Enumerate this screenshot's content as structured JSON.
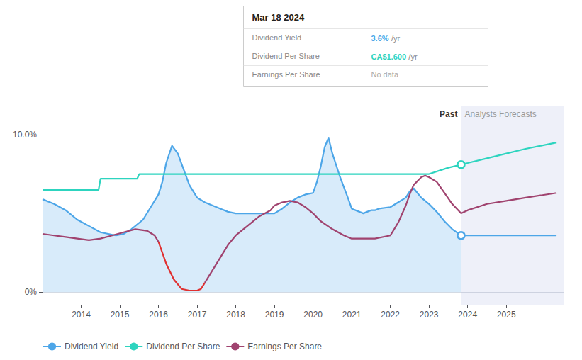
{
  "chart_data": {
    "type": "line",
    "xlim": [
      2013.0,
      2026.5
    ],
    "xticks": [
      2014,
      2015,
      2016,
      2017,
      2018,
      2019,
      2020,
      2021,
      2022,
      2023,
      2024,
      2025
    ],
    "ylim": [
      -0.008,
      0.118
    ],
    "yticks": [
      {
        "value": 0.0,
        "label": "0%"
      },
      {
        "value": 0.1,
        "label": "10.0%"
      }
    ],
    "grid": true,
    "legend": "lower left",
    "forecast_divider_x": 2023.83,
    "past_label": "Past",
    "forecast_label": "Analysts Forecasts",
    "tooltip": {
      "title": "Mar 18 2024",
      "rows": [
        {
          "label": "Dividend Yield",
          "value": "3.6%",
          "suffix": "/yr"
        },
        {
          "label": "Dividend Per Share",
          "value": "CA$1.600",
          "suffix": "/yr"
        },
        {
          "label": "Earnings Per Share",
          "value": "No data"
        }
      ]
    },
    "series": [
      {
        "name": "Dividend Yield",
        "type": "area",
        "color": "#4da6e8",
        "x": [
          2013.0,
          2013.3,
          2013.6,
          2013.9,
          2014.2,
          2014.5,
          2014.7,
          2014.9,
          2015.1,
          2015.3,
          2015.6,
          2015.8,
          2016.0,
          2016.1,
          2016.2,
          2016.35,
          2016.5,
          2016.65,
          2016.8,
          2017.0,
          2017.2,
          2017.4,
          2017.6,
          2017.8,
          2018.0,
          2018.2,
          2018.5,
          2018.7,
          2019.0,
          2019.2,
          2019.4,
          2019.6,
          2019.8,
          2020.0,
          2020.1,
          2020.2,
          2020.3,
          2020.4,
          2020.5,
          2020.7,
          2020.9,
          2021.0,
          2021.2,
          2021.3,
          2021.4,
          2021.5,
          2021.6,
          2021.7,
          2022.0,
          2022.2,
          2022.4,
          2022.5,
          2022.6,
          2022.7,
          2022.8,
          2023.0,
          2023.2,
          2023.4,
          2023.6,
          2023.83
        ],
        "values": [
          0.059,
          0.056,
          0.052,
          0.046,
          0.042,
          0.038,
          0.037,
          0.036,
          0.037,
          0.04,
          0.046,
          0.054,
          0.062,
          0.07,
          0.082,
          0.093,
          0.088,
          0.078,
          0.068,
          0.06,
          0.057,
          0.055,
          0.053,
          0.051,
          0.05,
          0.05,
          0.05,
          0.05,
          0.05,
          0.053,
          0.057,
          0.06,
          0.062,
          0.063,
          0.07,
          0.08,
          0.092,
          0.098,
          0.088,
          0.073,
          0.06,
          0.053,
          0.051,
          0.05,
          0.051,
          0.052,
          0.052,
          0.053,
          0.054,
          0.057,
          0.06,
          0.064,
          0.066,
          0.063,
          0.06,
          0.056,
          0.051,
          0.045,
          0.04,
          0.036
        ]
      },
      {
        "name": "Dividend Yield",
        "type": "line",
        "color": "#4da6e8",
        "marker": "circle",
        "x": [
          2023.83,
          2024.0,
          2024.5,
          2025.0,
          2025.5,
          2026.3
        ],
        "values": [
          0.036,
          0.036,
          0.036,
          0.036,
          0.036,
          0.036
        ]
      },
      {
        "name": "Dividend Per Share",
        "type": "line",
        "color": "#2dd4bf",
        "x": [
          2013.0,
          2013.5,
          2014.0,
          2014.45,
          2014.5,
          2015.0,
          2015.45,
          2015.5,
          2022.5,
          2022.8,
          2023.0,
          2023.5,
          2023.83
        ],
        "values": [
          0.065,
          0.065,
          0.065,
          0.065,
          0.072,
          0.072,
          0.072,
          0.075,
          0.075,
          0.075,
          0.075,
          0.079,
          0.081
        ]
      },
      {
        "name": "Dividend Per Share",
        "type": "line",
        "color": "#2dd4bf",
        "marker": "circle",
        "x": [
          2023.83,
          2024.0,
          2024.5,
          2025.0,
          2025.5,
          2026.3
        ],
        "values": [
          0.081,
          0.082,
          0.085,
          0.088,
          0.091,
          0.095
        ]
      },
      {
        "name": "Earnings Per Share",
        "type": "line",
        "color": "#a0436f",
        "x": [
          2013.0,
          2013.3,
          2013.6,
          2013.9,
          2014.2,
          2014.5,
          2014.8,
          2015.1,
          2015.4,
          2015.7,
          2015.9,
          2016.0
        ],
        "values": [
          0.037,
          0.036,
          0.035,
          0.034,
          0.033,
          0.034,
          0.036,
          0.038,
          0.04,
          0.039,
          0.036,
          0.032
        ]
      },
      {
        "name": "Earnings Per Share",
        "type": "line",
        "color": "#e03030",
        "x": [
          2016.0,
          2016.2,
          2016.4,
          2016.6,
          2016.8,
          2016.9,
          2017.0,
          2017.1,
          2017.2
        ],
        "values": [
          0.032,
          0.018,
          0.008,
          0.002,
          0.001,
          0.001,
          0.001,
          0.002,
          0.006
        ]
      },
      {
        "name": "Earnings Per Share",
        "type": "line",
        "color": "#a0436f",
        "x": [
          2017.2,
          2017.4,
          2017.6,
          2017.8,
          2018.0,
          2018.3,
          2018.6,
          2018.9,
          2019.0,
          2019.2,
          2019.4,
          2019.6,
          2019.8,
          2020.0,
          2020.2,
          2020.5,
          2020.8,
          2021.0,
          2021.2,
          2021.4,
          2021.6,
          2022.0,
          2022.2,
          2022.4,
          2022.5,
          2022.6,
          2022.8,
          2022.9,
          2023.0,
          2023.2,
          2023.4,
          2023.6,
          2023.83
        ],
        "values": [
          0.006,
          0.014,
          0.022,
          0.03,
          0.036,
          0.042,
          0.048,
          0.052,
          0.055,
          0.057,
          0.058,
          0.057,
          0.054,
          0.05,
          0.045,
          0.04,
          0.036,
          0.034,
          0.034,
          0.034,
          0.034,
          0.036,
          0.044,
          0.055,
          0.062,
          0.068,
          0.073,
          0.074,
          0.073,
          0.07,
          0.063,
          0.056,
          0.05
        ]
      },
      {
        "name": "Earnings Per Share",
        "type": "line",
        "color": "#a0436f",
        "x": [
          2023.83,
          2024.0,
          2024.5,
          2025.0,
          2025.5,
          2026.3
        ],
        "values": [
          0.05,
          0.052,
          0.056,
          0.058,
          0.06,
          0.063
        ]
      }
    ]
  }
}
